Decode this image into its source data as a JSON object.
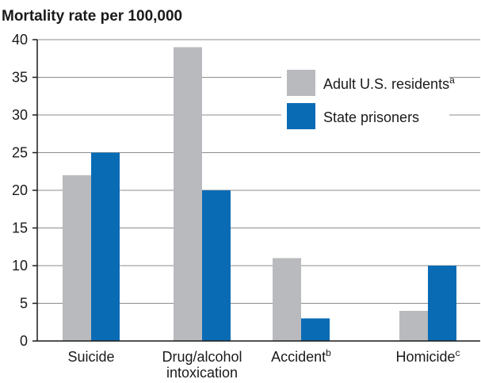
{
  "chart_data": {
    "type": "bar",
    "title": "Mortality rate per 100,000",
    "ylim": [
      0,
      40
    ],
    "yticks": [
      "0",
      "5",
      "10",
      "15",
      "20",
      "25",
      "30",
      "35",
      "40"
    ],
    "grid": true,
    "legend_position": "top-right",
    "categories": [
      {
        "lines": [
          "Suicide"
        ],
        "sup": ""
      },
      {
        "lines": [
          "Drug/alcohol",
          "intoxication"
        ],
        "sup": ""
      },
      {
        "lines": [
          "Accident"
        ],
        "sup": "b"
      },
      {
        "lines": [
          "Homicide"
        ],
        "sup": "c"
      }
    ],
    "series": [
      {
        "name": "Adult U.S. residents",
        "name_sup": "a",
        "color": "#b9babd",
        "values": [
          22,
          39,
          11,
          4
        ]
      },
      {
        "name": "State prisoners",
        "name_sup": "",
        "color": "#0a6bb5",
        "values": [
          25,
          20,
          3,
          10
        ]
      }
    ]
  }
}
